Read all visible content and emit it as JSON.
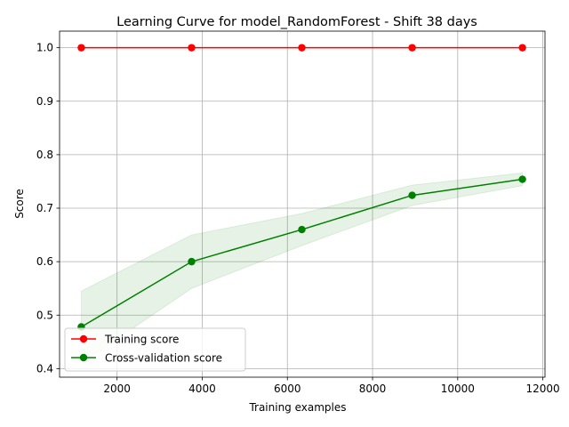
{
  "chart_data": {
    "type": "line",
    "title": "Learning Curve for model_RandomForest - Shift 38 days",
    "xlabel": "Training examples",
    "ylabel": "Score",
    "xlim": [
      650,
      12050
    ],
    "ylim": [
      0.384,
      1.031
    ],
    "xticks": [
      2000,
      4000,
      6000,
      8000,
      10000,
      12000
    ],
    "yticks": [
      0.4,
      0.5,
      0.6,
      0.7,
      0.8,
      0.9,
      1.0
    ],
    "xtick_labels": [
      "2000",
      "4000",
      "6000",
      "8000",
      "10000",
      "12000"
    ],
    "ytick_labels": [
      "0.4",
      "0.5",
      "0.6",
      "0.7",
      "0.8",
      "0.9",
      "1.0"
    ],
    "grid": true,
    "legend_position": "lower-left",
    "x": [
      1160,
      3750,
      6340,
      8930,
      11520
    ],
    "series": [
      {
        "name": "Training score",
        "color": "#ff0000",
        "values": [
          1.0,
          1.0,
          1.0,
          1.0,
          1.0
        ],
        "band_lower": [
          1.0,
          1.0,
          1.0,
          1.0,
          1.0
        ],
        "band_upper": [
          1.0,
          1.0,
          1.0,
          1.0,
          1.0
        ]
      },
      {
        "name": "Cross-validation score",
        "color": "#008000",
        "values": [
          0.478,
          0.6,
          0.66,
          0.724,
          0.754
        ],
        "band_lower": [
          0.41,
          0.55,
          0.63,
          0.705,
          0.742
        ],
        "band_upper": [
          0.545,
          0.65,
          0.69,
          0.743,
          0.766
        ]
      }
    ]
  }
}
